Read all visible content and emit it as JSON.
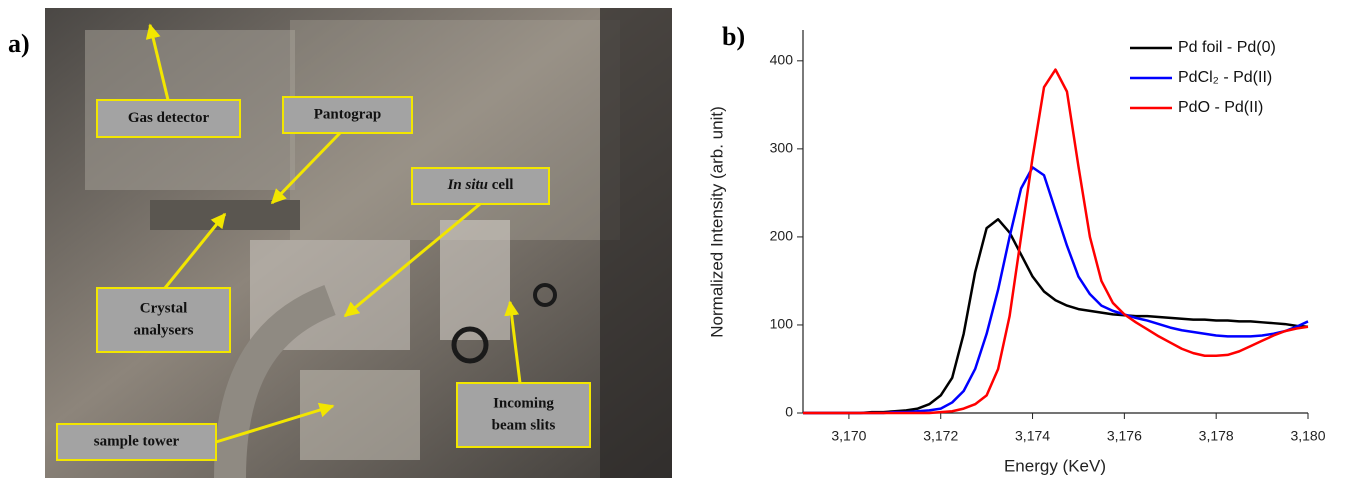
{
  "panel_a": {
    "label": "a)",
    "callouts": [
      {
        "lines": [
          "Gas detector"
        ]
      },
      {
        "lines": [
          "Pantograp"
        ]
      },
      {
        "italic_lead": "In situ",
        "lines": [
          "cell"
        ]
      },
      {
        "lines": [
          "Crystal",
          "analysers"
        ]
      },
      {
        "lines": [
          "sample tower"
        ]
      },
      {
        "lines": [
          "Incoming",
          "beam slits"
        ]
      }
    ]
  },
  "chart_data": {
    "type": "line",
    "panel_label": "b)",
    "x_label": "Energy (KeV)",
    "y_label": "Normalized Intensity (arb. unit)",
    "x": [
      3169,
      3169.25,
      3169.5,
      3169.75,
      3170,
      3170.25,
      3170.5,
      3170.75,
      3171,
      3171.25,
      3171.5,
      3171.75,
      3172,
      3172.25,
      3172.5,
      3172.75,
      3173,
      3173.25,
      3173.5,
      3173.75,
      3174,
      3174.25,
      3174.5,
      3174.75,
      3175,
      3175.25,
      3175.5,
      3175.75,
      3176,
      3176.25,
      3176.5,
      3176.75,
      3177,
      3177.25,
      3177.5,
      3177.75,
      3178,
      3178.25,
      3178.5,
      3178.75,
      3179,
      3179.25,
      3179.5,
      3179.75,
      3180
    ],
    "series": [
      {
        "name": "Pd foil  - Pd(0)",
        "color": "#000000",
        "values": [
          0,
          0,
          0,
          0,
          0,
          0,
          1,
          1,
          2,
          3,
          5,
          10,
          20,
          40,
          90,
          160,
          210,
          220,
          205,
          180,
          155,
          138,
          128,
          122,
          118,
          116,
          114,
          112,
          111,
          110,
          110,
          109,
          108,
          107,
          106,
          106,
          105,
          105,
          104,
          104,
          103,
          102,
          101,
          99,
          98
        ]
      },
      {
        "name": "PdCl₂  - Pd(II)",
        "color": "#0000ff",
        "values": [
          0,
          0,
          0,
          0,
          0,
          0,
          0,
          0,
          1,
          1,
          2,
          3,
          5,
          12,
          25,
          50,
          90,
          140,
          200,
          255,
          279,
          270,
          230,
          190,
          155,
          135,
          122,
          116,
          112,
          108,
          105,
          101,
          97,
          94,
          92,
          90,
          88,
          87,
          87,
          87,
          88,
          90,
          93,
          98,
          104
        ]
      },
      {
        "name": "PdO - Pd(II)",
        "color": "#ff0000",
        "values": [
          0,
          0,
          0,
          0,
          0,
          0,
          0,
          0,
          0,
          0,
          0,
          0,
          1,
          2,
          5,
          10,
          20,
          50,
          110,
          200,
          290,
          370,
          390,
          365,
          280,
          200,
          150,
          125,
          112,
          103,
          95,
          87,
          80,
          73,
          68,
          65,
          65,
          66,
          70,
          76,
          82,
          88,
          93,
          96,
          98
        ]
      }
    ],
    "xlim": [
      3169,
      3180
    ],
    "xticks": [
      {
        "value": 3170,
        "label": "3,170"
      },
      {
        "value": 3172,
        "label": "3,172"
      },
      {
        "value": 3174,
        "label": "3,174"
      },
      {
        "value": 3176,
        "label": "3,176"
      },
      {
        "value": 3178,
        "label": "3,178"
      },
      {
        "value": 3180,
        "label": "3,180"
      }
    ],
    "ylim": [
      0,
      435
    ],
    "yticks": [
      0,
      100,
      200,
      300,
      400
    ],
    "grid": false,
    "legend": "upper right"
  }
}
